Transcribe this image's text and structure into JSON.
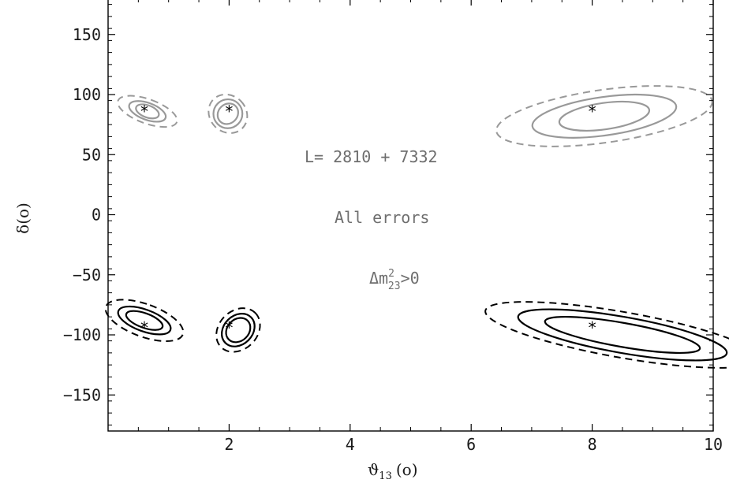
{
  "chart_data": {
    "type": "scatter",
    "title": "",
    "xlabel_main": "ϑ",
    "xlabel_sub": "13",
    "xlabel_unit": "(o)",
    "ylabel": "δ(o)",
    "xlim": [
      0,
      10
    ],
    "ylim": [
      -180,
      180
    ],
    "x_ticks": [
      2,
      4,
      6,
      8,
      10
    ],
    "y_ticks": [
      150,
      100,
      50,
      0,
      -50,
      -100,
      -150
    ],
    "x_tick_labels": [
      "2",
      "4",
      "6",
      "8",
      "10"
    ],
    "y_tick_labels": [
      "150",
      "100",
      "50",
      "0",
      "−50",
      "−100",
      "−150"
    ],
    "grid": false,
    "annotations": {
      "baseline": "L= 2810 + 7332",
      "errors": "All errors",
      "hierarchy_prefix": "Δm",
      "hierarchy_sup": "2",
      "hierarchy_sub": "23",
      "hierarchy_suffix": ">0"
    },
    "true_points": [
      {
        "x": 0.6,
        "y": 88
      },
      {
        "x": 2.0,
        "y": 88
      },
      {
        "x": 8.0,
        "y": 88
      },
      {
        "x": 0.6,
        "y": -92
      },
      {
        "x": 2.0,
        "y": -92
      },
      {
        "x": 8.0,
        "y": -92
      }
    ],
    "contour_colors": {
      "positive_delta": "#999999",
      "negative_delta": "#000000"
    },
    "contour_levels": [
      "inner",
      "middle",
      "outer"
    ],
    "contour_regions": [
      {
        "group": "positive_delta",
        "center": [
          0.65,
          86
        ],
        "half_width_x": [
          0.1,
          0.14,
          0.2
        ],
        "half_width_y": [
          10,
          16,
          26
        ],
        "tilt_deg": -70
      },
      {
        "group": "positive_delta",
        "center": [
          1.98,
          84
        ],
        "half_width_x": [
          0.18,
          0.24,
          0.3
        ],
        "half_width_y": [
          8,
          12,
          17
        ],
        "tilt_deg": -45
      },
      {
        "group": "positive_delta",
        "center": [
          8.2,
          82
        ],
        "half_width_x": [
          0.75,
          1.2,
          1.8
        ],
        "half_width_y": [
          11,
          16,
          22
        ],
        "tilt_deg": -8
      },
      {
        "group": "negative_delta",
        "center": [
          0.6,
          -88
        ],
        "half_width_x": [
          0.12,
          0.18,
          0.27
        ],
        "half_width_y": [
          16,
          23,
          34
        ],
        "tilt_deg": -70
      },
      {
        "group": "negative_delta",
        "center": [
          2.15,
          -96
        ],
        "half_width_x": [
          0.22,
          0.3,
          0.4
        ],
        "half_width_y": [
          9,
          12,
          16
        ],
        "tilt_deg": -45
      },
      {
        "group": "negative_delta",
        "center": [
          8.5,
          -100
        ],
        "half_width_x": [
          1.3,
          1.75,
          2.3
        ],
        "half_width_y": [
          10,
          15,
          19
        ],
        "tilt_deg": 10
      }
    ]
  }
}
